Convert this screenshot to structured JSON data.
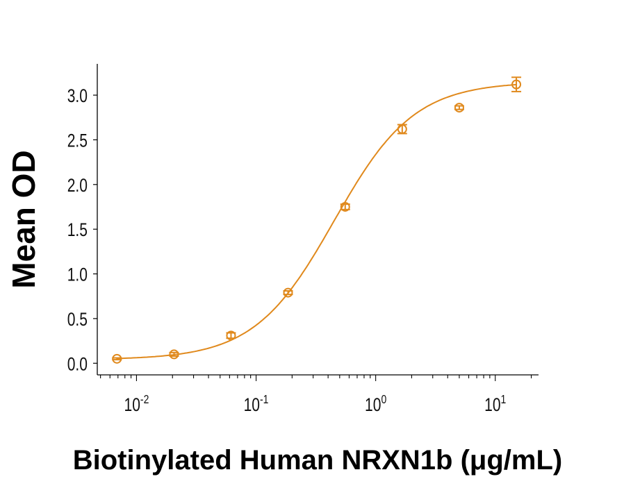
{
  "chart_data": {
    "type": "scatter",
    "title": "",
    "xlabel": "Biotinylated Human NRXN1b (μg/mL)",
    "ylabel": "Mean OD",
    "x_scale": "log",
    "xlim": [
      0.0047,
      23
    ],
    "ylim": [
      -0.13,
      3.35
    ],
    "x_ticks": [
      {
        "base": "10",
        "exp": "-2",
        "value": 0.01
      },
      {
        "base": "10",
        "exp": "-1",
        "value": 0.1
      },
      {
        "base": "10",
        "exp": "0",
        "value": 1
      },
      {
        "base": "10",
        "exp": "1",
        "value": 10
      }
    ],
    "y_ticks": [
      "0.0",
      "0.5",
      "1.0",
      "1.5",
      "2.0",
      "2.5",
      "3.0"
    ],
    "grid": false,
    "color": "#E0891C",
    "points": {
      "x": [
        0.00686,
        0.0206,
        0.0617,
        0.185,
        0.556,
        1.667,
        5,
        15
      ],
      "y": [
        0.05,
        0.1,
        0.31,
        0.79,
        1.75,
        2.62,
        2.86,
        3.12
      ],
      "error": [
        0.01,
        0.02,
        0.03,
        0.02,
        0.03,
        0.05,
        0.02,
        0.08
      ]
    },
    "fit": {
      "model": "4PL",
      "bottom": 0.04,
      "top": 3.15,
      "ec50": 0.45,
      "hill": 1.3
    }
  }
}
